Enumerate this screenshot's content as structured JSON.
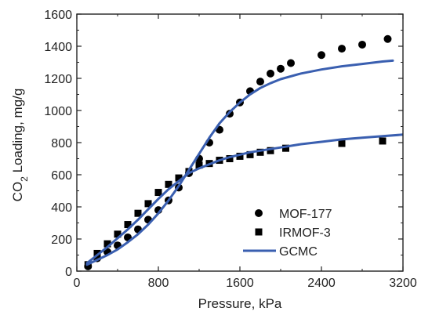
{
  "chart_data": {
    "type": "scatter",
    "xlabel": "Pressure, kPa",
    "ylabel_parts": {
      "pre": "CO",
      "sub": "2",
      "post": " Loading, mg/g"
    },
    "xlim": [
      0,
      3200
    ],
    "ylim": [
      0,
      1600
    ],
    "xticks": [
      0,
      800,
      1600,
      2400,
      3200
    ],
    "yticks": [
      0,
      200,
      400,
      600,
      800,
      1000,
      1200,
      1400,
      1600
    ],
    "grid": false,
    "legend_position": "lower-right",
    "series": [
      {
        "name": "MOF-177",
        "kind": "scatter",
        "marker": "circle",
        "color": "#000000",
        "x": [
          110,
          200,
          300,
          400,
          500,
          600,
          700,
          800,
          900,
          1000,
          1100,
          1200,
          1300,
          1400,
          1500,
          1600,
          1700,
          1800,
          1900,
          2000,
          2100,
          2400,
          2600,
          2800,
          3050
        ],
        "y": [
          30,
          80,
          120,
          160,
          210,
          260,
          320,
          380,
          440,
          520,
          610,
          700,
          800,
          880,
          980,
          1050,
          1120,
          1180,
          1230,
          1260,
          1295,
          1345,
          1385,
          1410,
          1445
        ]
      },
      {
        "name": "IRMOF-3",
        "kind": "scatter",
        "marker": "square",
        "color": "#000000",
        "x": [
          110,
          200,
          300,
          400,
          500,
          600,
          700,
          800,
          900,
          1000,
          1100,
          1200,
          1300,
          1400,
          1500,
          1600,
          1700,
          1800,
          1900,
          2050,
          2600,
          3000
        ],
        "y": [
          40,
          110,
          170,
          230,
          290,
          360,
          420,
          490,
          540,
          580,
          620,
          660,
          670,
          690,
          700,
          715,
          725,
          740,
          750,
          765,
          795,
          810
        ]
      },
      {
        "name": "GCMC",
        "kind": "line",
        "color": "#3a5fb0",
        "curves": [
          {
            "x": [
              100,
              200,
              300,
              400,
              500,
              600,
              700,
              800,
              900,
              1000,
              1100,
              1200,
              1300,
              1400,
              1500,
              1600,
              1700,
              1800,
              1900,
              2000,
              2200,
              2400,
              2600,
              2800,
              3000,
              3100
            ],
            "y": [
              40,
              70,
              100,
              135,
              180,
              230,
              290,
              360,
              440,
              530,
              630,
              730,
              830,
              920,
              990,
              1050,
              1100,
              1140,
              1170,
              1195,
              1230,
              1255,
              1275,
              1290,
              1305,
              1310
            ]
          },
          {
            "x": [
              100,
              200,
              300,
              400,
              500,
              600,
              700,
              800,
              900,
              1000,
              1100,
              1200,
              1300,
              1400,
              1500,
              1600,
              1700,
              1800,
              1900,
              2000,
              2200,
              2400,
              2600,
              2800,
              3000,
              3200
            ],
            "y": [
              50,
              100,
              150,
              205,
              260,
              320,
              385,
              450,
              510,
              560,
              610,
              640,
              665,
              690,
              710,
              725,
              740,
              750,
              760,
              770,
              790,
              805,
              820,
              830,
              840,
              850
            ]
          }
        ]
      }
    ]
  }
}
